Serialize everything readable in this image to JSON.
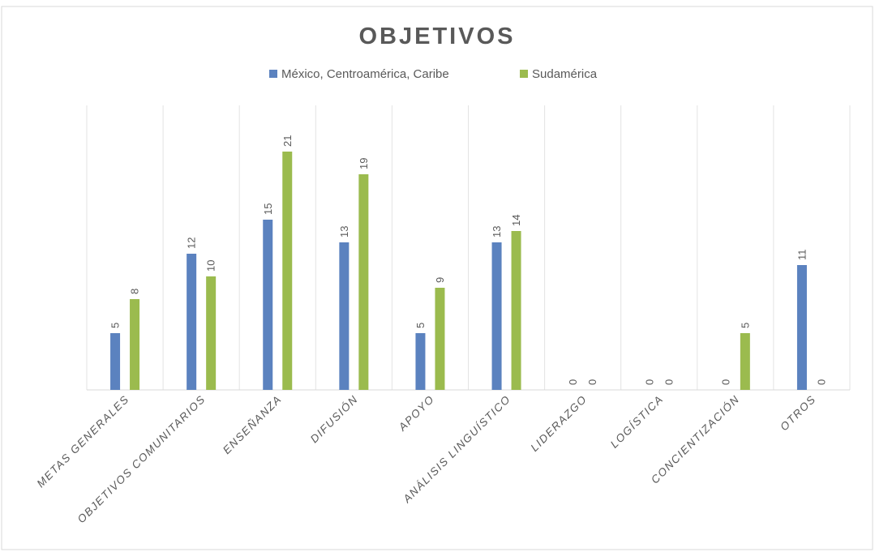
{
  "chart_data": {
    "type": "bar",
    "title": "OBJETIVOS",
    "xlabel": "",
    "ylabel": "",
    "ylim": [
      0,
      21
    ],
    "grid": "vertical category separators",
    "legend_position": "top",
    "categories": [
      "METAS GENERALES",
      "OBJETIVOS COMUNITARIOS",
      "ENSEÑANZA",
      "DIFUSIÓN",
      "APOYO",
      "ANÁLISIS LINGUÍSTICO",
      "LIDERAZGO",
      "LOGÍSTICA",
      "CONCIENTIZACIÓN",
      "OTROS"
    ],
    "series": [
      {
        "name": "México, Centroamérica, Caribe",
        "color": "#5b82bf",
        "values": [
          5,
          12,
          15,
          13,
          5,
          13,
          0,
          0,
          0,
          11
        ]
      },
      {
        "name": "Sudamérica",
        "color": "#9bbb4e",
        "values": [
          8,
          10,
          21,
          19,
          9,
          14,
          0,
          0,
          5,
          0
        ]
      }
    ]
  }
}
